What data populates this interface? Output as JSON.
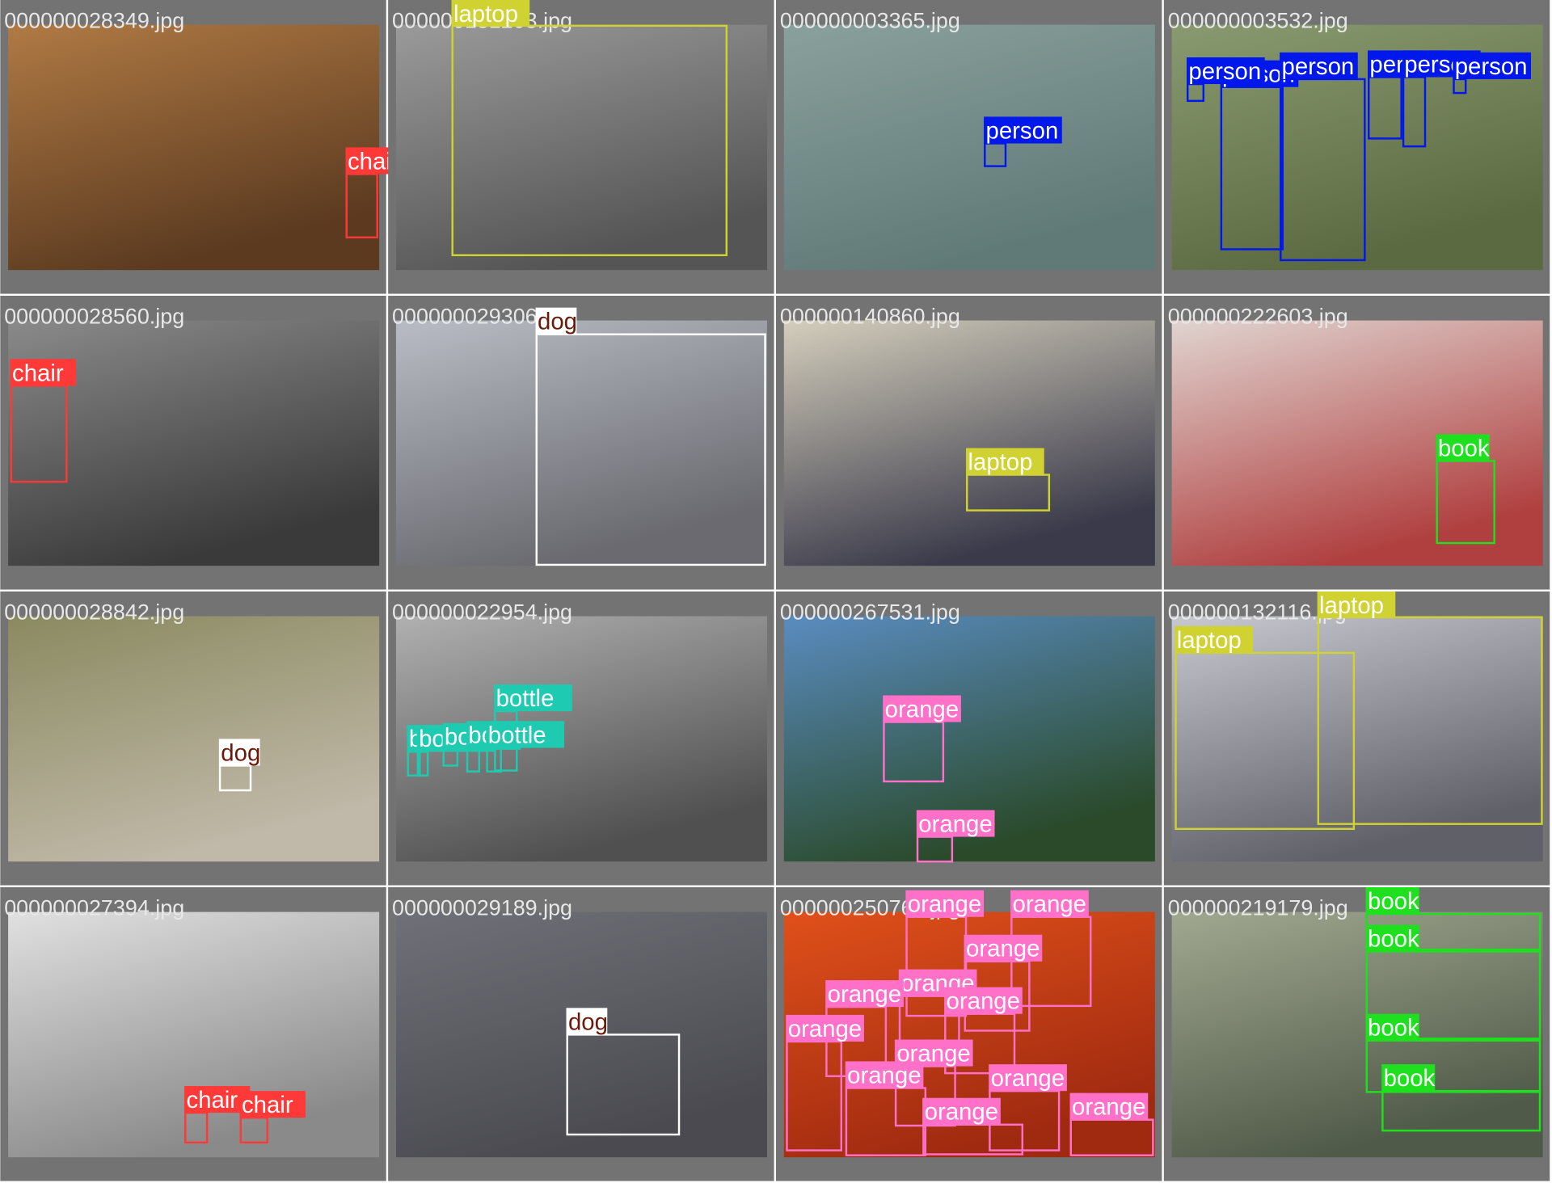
{
  "tiles": [
    {
      "filename": "000000028349.jpg",
      "detections": [
        "chair"
      ]
    },
    {
      "filename": "000000131203.jpg",
      "detections": [
        "laptop"
      ]
    },
    {
      "filename": "000000003365.jpg",
      "detections": [
        "person"
      ]
    },
    {
      "filename": "000000003532.jpg",
      "detections": [
        "person",
        "person",
        "person",
        "person",
        "person",
        "person"
      ]
    },
    {
      "filename": "000000028560.jpg",
      "detections": [
        "chair"
      ]
    },
    {
      "filename": "000000029306.jpg",
      "detections": [
        "dog"
      ]
    },
    {
      "filename": "000000140860.jpg",
      "detections": [
        "laptop"
      ]
    },
    {
      "filename": "000000222603.jpg",
      "detections": [
        "book"
      ]
    },
    {
      "filename": "000000028842.jpg",
      "detections": [
        "dog"
      ]
    },
    {
      "filename": "000000022954.jpg",
      "detections": [
        "bottle",
        "bottle",
        "bottle",
        "bottle",
        "bottle",
        "bottle"
      ]
    },
    {
      "filename": "000000267531.jpg",
      "detections": [
        "orange",
        "orange"
      ]
    },
    {
      "filename": "000000132116.jpg",
      "detections": [
        "laptop",
        "laptop"
      ]
    },
    {
      "filename": "000000027394.jpg",
      "detections": [
        "chair",
        "chair"
      ]
    },
    {
      "filename": "000000029189.jpg",
      "detections": [
        "dog"
      ]
    },
    {
      "filename": "000000250766.jpg",
      "detections": [
        "orange",
        "orange",
        "orange",
        "orange",
        "orange",
        "orange",
        "orange",
        "orange",
        "orange",
        "orange",
        "orange",
        "orange"
      ]
    },
    {
      "filename": "000000219179.jpg",
      "detections": [
        "book",
        "book",
        "book",
        "book"
      ]
    }
  ]
}
